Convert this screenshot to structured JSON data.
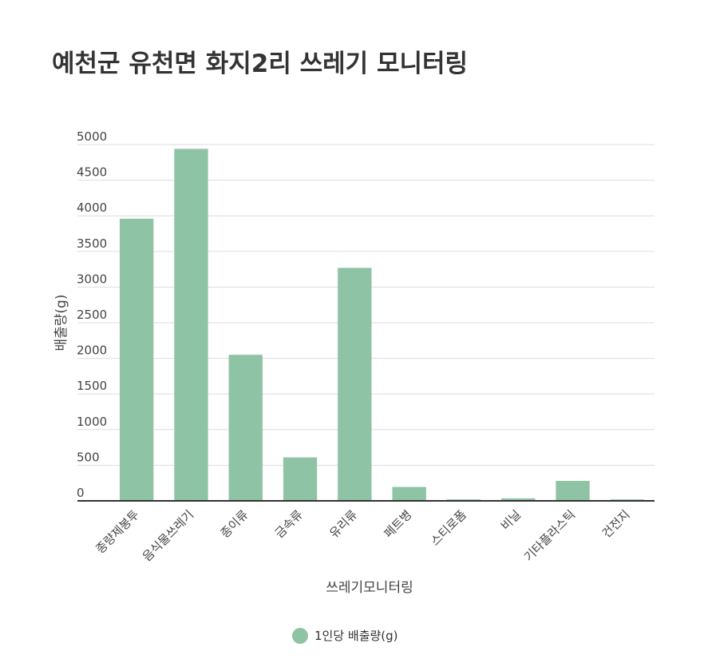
{
  "chart_data": {
    "type": "bar",
    "title": "예천군 유천면 화지2리 쓰레기 모니터링",
    "xlabel": "쓰레기모니터링",
    "ylabel": "배출량(g)",
    "ylim": [
      0,
      5000
    ],
    "yticks": [
      0,
      500,
      1000,
      1500,
      2000,
      2500,
      3000,
      3500,
      4000,
      4500,
      5000
    ],
    "grid": true,
    "legend_position": "bottom",
    "categories": [
      "종량제봉투",
      "음식물쓰레기",
      "종이류",
      "금속류",
      "유리류",
      "페트병",
      "스티로폼",
      "비닐",
      "기타플라스틱",
      "건전지"
    ],
    "series": [
      {
        "name": "1인당 배출량(g)",
        "color": "#8fc3a5",
        "values": [
          3960,
          4940,
          2050,
          610,
          3270,
          195,
          20,
          35,
          280,
          20
        ]
      }
    ]
  }
}
